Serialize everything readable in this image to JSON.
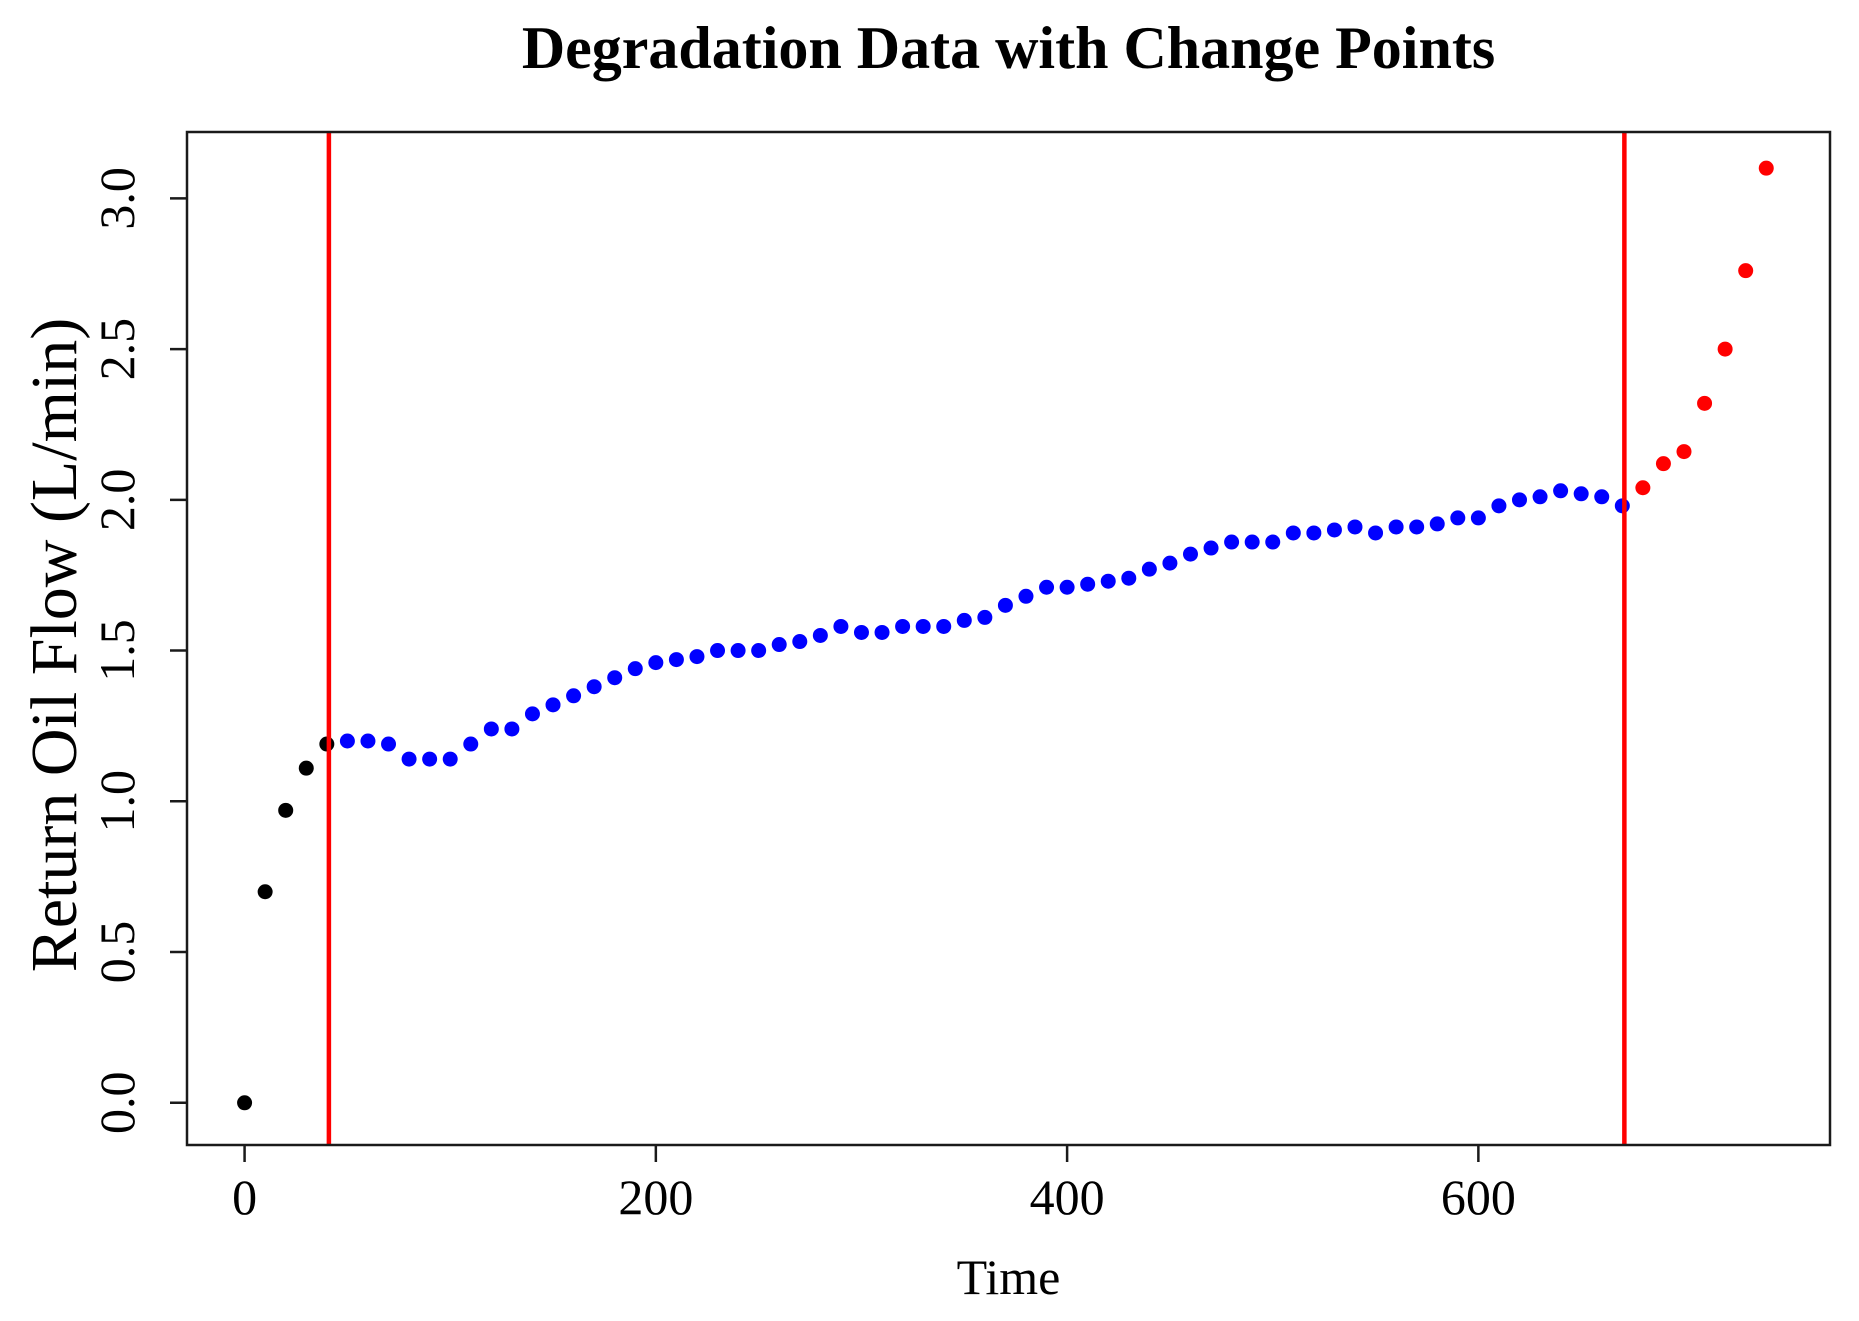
{
  "figure": {
    "background": "#FFFFFF",
    "axis_color": "#1a1a1a"
  },
  "chart_data": {
    "type": "scatter",
    "title": "Degradation Data with Change Points",
    "xlabel": "Time",
    "ylabel": "Return Oil Flow (L/min)",
    "xlim": [
      -28,
      771
    ],
    "ylim": [
      -0.14,
      3.22
    ],
    "x_ticks": [
      0,
      200,
      400,
      600
    ],
    "x_tick_labels": [
      "0",
      "200",
      "400",
      "600"
    ],
    "y_ticks": [
      0,
      0.5,
      1,
      1.5,
      2,
      2.5,
      3
    ],
    "y_tick_labels": [
      "0.0",
      "0.5",
      "1.0",
      "1.5",
      "2.0",
      "2.5",
      "3.0"
    ],
    "grid": false,
    "legend": "none",
    "point_radius": 7.5,
    "change_points": {
      "x_values": [
        41,
        671
      ],
      "color": "#FF0000",
      "line_width": 4.5
    },
    "series": [
      {
        "name": "pre-change-segment",
        "color": "#000000",
        "points": [
          [
            0,
            0.0
          ],
          [
            10,
            0.7
          ],
          [
            20,
            0.97
          ],
          [
            30,
            1.11
          ],
          [
            40,
            1.19
          ]
        ]
      },
      {
        "name": "gradual-degradation-segment",
        "color": "#0000FF",
        "points": [
          [
            50,
            1.2
          ],
          [
            60,
            1.2
          ],
          [
            70,
            1.19
          ],
          [
            80,
            1.14
          ],
          [
            90,
            1.14
          ],
          [
            100,
            1.14
          ],
          [
            110,
            1.19
          ],
          [
            120,
            1.24
          ],
          [
            130,
            1.24
          ],
          [
            140,
            1.29
          ],
          [
            150,
            1.32
          ],
          [
            160,
            1.35
          ],
          [
            170,
            1.38
          ],
          [
            180,
            1.41
          ],
          [
            190,
            1.44
          ],
          [
            200,
            1.46
          ],
          [
            210,
            1.47
          ],
          [
            220,
            1.48
          ],
          [
            230,
            1.5
          ],
          [
            240,
            1.5
          ],
          [
            250,
            1.5
          ],
          [
            260,
            1.52
          ],
          [
            270,
            1.53
          ],
          [
            280,
            1.55
          ],
          [
            290,
            1.58
          ],
          [
            300,
            1.56
          ],
          [
            310,
            1.56
          ],
          [
            320,
            1.58
          ],
          [
            330,
            1.58
          ],
          [
            340,
            1.58
          ],
          [
            350,
            1.6
          ],
          [
            360,
            1.61
          ],
          [
            370,
            1.65
          ],
          [
            380,
            1.68
          ],
          [
            390,
            1.71
          ],
          [
            400,
            1.71
          ],
          [
            410,
            1.72
          ],
          [
            420,
            1.73
          ],
          [
            430,
            1.74
          ],
          [
            440,
            1.77
          ],
          [
            450,
            1.79
          ],
          [
            460,
            1.82
          ],
          [
            470,
            1.84
          ],
          [
            480,
            1.86
          ],
          [
            490,
            1.86
          ],
          [
            500,
            1.86
          ],
          [
            510,
            1.89
          ],
          [
            520,
            1.89
          ],
          [
            530,
            1.9
          ],
          [
            540,
            1.91
          ],
          [
            550,
            1.89
          ],
          [
            560,
            1.91
          ],
          [
            570,
            1.91
          ],
          [
            580,
            1.92
          ],
          [
            590,
            1.94
          ],
          [
            600,
            1.94
          ],
          [
            610,
            1.98
          ],
          [
            620,
            2.0
          ],
          [
            630,
            2.01
          ],
          [
            640,
            2.03
          ],
          [
            650,
            2.02
          ],
          [
            660,
            2.01
          ],
          [
            670,
            1.98
          ]
        ]
      },
      {
        "name": "post-change-segment",
        "color": "#FF0000",
        "points": [
          [
            680,
            2.04
          ],
          [
            690,
            2.12
          ],
          [
            700,
            2.16
          ],
          [
            710,
            2.32
          ],
          [
            720,
            2.5
          ],
          [
            730,
            2.76
          ],
          [
            740,
            3.1
          ]
        ]
      }
    ]
  }
}
